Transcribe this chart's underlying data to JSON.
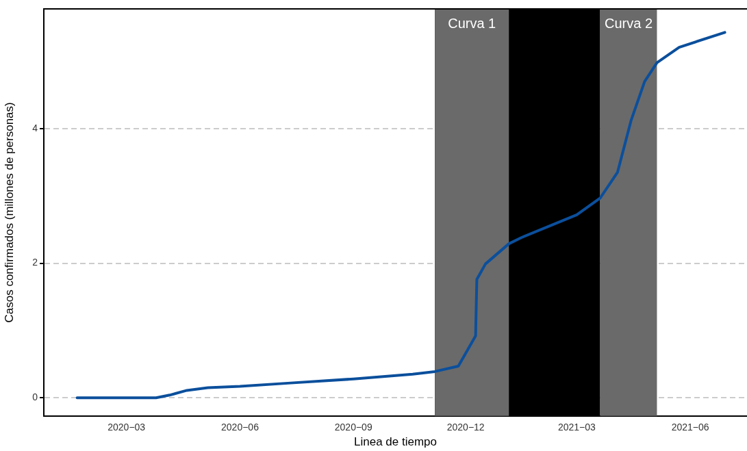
{
  "chart_data": {
    "type": "line",
    "xlabel": "Linea de tiempo",
    "ylabel": "Casos confirmados (millones de personas)",
    "x": [
      "2020-01-21",
      "2020-03-25",
      "2020-04-05",
      "2020-04-19",
      "2020-05-06",
      "2020-06-01",
      "2020-07-12",
      "2020-09-01",
      "2020-10-19",
      "2020-11-06",
      "2020-11-25",
      "2020-12-09",
      "2020-12-10",
      "2020-12-17",
      "2021-01-05",
      "2021-01-15",
      "2021-03-01",
      "2021-03-20",
      "2021-04-03",
      "2021-04-14",
      "2021-04-25",
      "2021-05-05",
      "2021-05-23",
      "2021-06-29"
    ],
    "series": [
      {
        "color": "#0b4f9c",
        "values": [
          0,
          0,
          0.04,
          0.11,
          0.15,
          0.17,
          0.22,
          0.28,
          0.35,
          0.39,
          0.47,
          0.92,
          1.76,
          1.99,
          2.29,
          2.38,
          2.72,
          2.97,
          3.35,
          4.12,
          4.7,
          4.98,
          5.21,
          5.43
        ]
      }
    ],
    "xlim": [
      "2019-12-25",
      "2021-07-17"
    ],
    "xticks": [
      {
        "value": "2020-03",
        "label": "2020−03"
      },
      {
        "value": "2020-06",
        "label": "2020−06"
      },
      {
        "value": "2020-09",
        "label": "2020−09"
      },
      {
        "value": "2020-12",
        "label": "2020−12"
      },
      {
        "value": "2021-03",
        "label": "2021−03"
      },
      {
        "value": "2021-06",
        "label": "2021−06"
      }
    ],
    "ylim": [
      -0.27,
      5.78
    ],
    "yticks": [
      0,
      2,
      4
    ],
    "bands": [
      {
        "axis": "x",
        "from": "2020-11-06",
        "to": "2021-03-20",
        "color": "#000000"
      },
      {
        "axis": "x",
        "from": "2020-11-06",
        "to": "2021-01-05",
        "color": "#6a6a6a",
        "label": "Curva 1"
      },
      {
        "axis": "x",
        "from": "2021-03-20",
        "to": "2021-05-05",
        "color": "#6a6a6a",
        "label": "Curva 2"
      }
    ],
    "grid": "y",
    "legend": false,
    "marker": "none",
    "line_style": "solid"
  }
}
